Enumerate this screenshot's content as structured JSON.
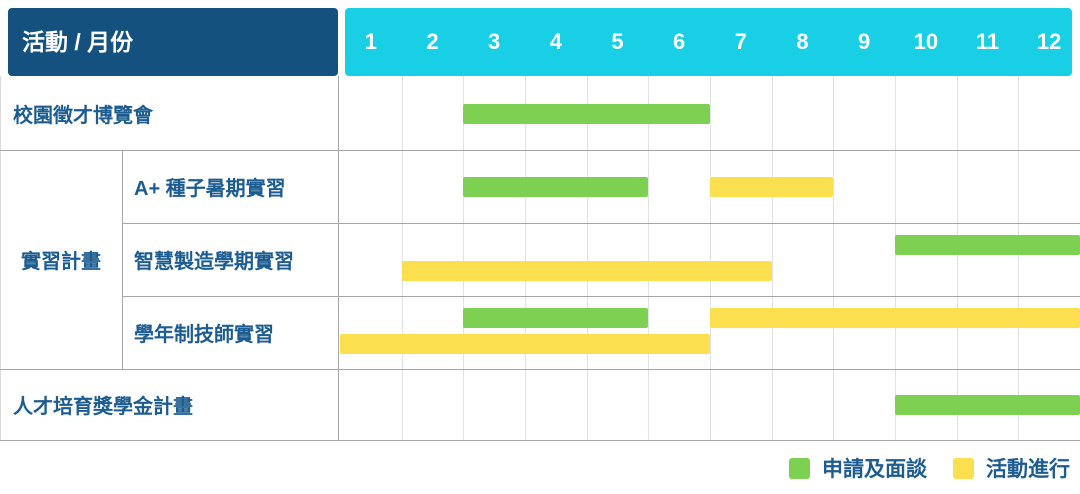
{
  "title": "活動 / 月份",
  "months": [
    "1",
    "2",
    "3",
    "4",
    "5",
    "6",
    "7",
    "8",
    "9",
    "10",
    "11",
    "12"
  ],
  "colors": {
    "header_bg": "#14517F",
    "months_bg": "#18CFE6",
    "application": "#7ED052",
    "activity": "#FBDF4F",
    "label_text": "#1C5C90",
    "row_line": "#A6A6A6",
    "month_line": "#DFE3E7",
    "edge_line": "#D9D9D9"
  },
  "chart_data": {
    "type": "gantt",
    "title": "活動 / 月份",
    "x_axis": {
      "label": "月份",
      "ticks": [
        1,
        2,
        3,
        4,
        5,
        6,
        7,
        8,
        9,
        10,
        11,
        12
      ],
      "range": [
        1,
        12
      ]
    },
    "grid": true,
    "legend_position": "bottom-right",
    "legend": [
      {
        "name": "申請及面談",
        "color": "#7ED052"
      },
      {
        "name": "活動進行",
        "color": "#FBDF4F"
      }
    ],
    "group_label": "實習計畫",
    "rows": [
      {
        "group": "",
        "label": "校園徵才博覽會",
        "bars": [
          {
            "series": "申請及面談",
            "start_month": 3,
            "end_month": 6,
            "lane": "center"
          }
        ]
      },
      {
        "group": "實習計畫",
        "label": "A+ 種子暑期實習",
        "bars": [
          {
            "series": "申請及面談",
            "start_month": 3,
            "end_month": 5,
            "lane": "center"
          },
          {
            "series": "活動進行",
            "start_month": 7,
            "end_month": 8,
            "lane": "center"
          }
        ]
      },
      {
        "group": "實習計畫",
        "label": "智慧製造學期實習",
        "bars": [
          {
            "series": "申請及面談",
            "start_month": 10,
            "end_month": 12,
            "lane": "top"
          },
          {
            "series": "活動進行",
            "start_month": 2,
            "end_month": 7,
            "lane": "bottom"
          }
        ]
      },
      {
        "group": "實習計畫",
        "label": "學年制技師實習",
        "bars": [
          {
            "series": "申請及面談",
            "start_month": 3,
            "end_month": 5,
            "lane": "top"
          },
          {
            "series": "活動進行",
            "start_month": 7,
            "end_month": 12,
            "lane": "top"
          },
          {
            "series": "活動進行",
            "start_month": 1,
            "end_month": 6,
            "lane": "bottom"
          }
        ]
      },
      {
        "group": "",
        "label": "人才培育獎學金計畫",
        "bars": [
          {
            "series": "申請及面談",
            "start_month": 10,
            "end_month": 12,
            "lane": "center"
          }
        ]
      }
    ]
  }
}
